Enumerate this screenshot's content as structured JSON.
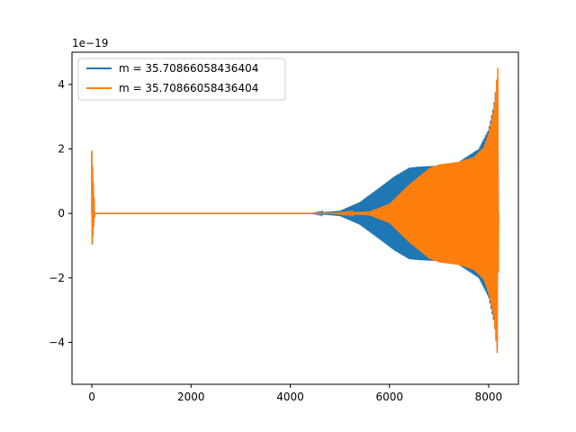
{
  "chart_data": {
    "type": "line",
    "title": "",
    "xlabel": "",
    "ylabel": "",
    "y_offset_label": "1e−19",
    "xlim": [
      -400,
      8600
    ],
    "ylim": [
      -5.3,
      5.0
    ],
    "x_ticks": [
      0,
      2000,
      4000,
      6000,
      8000
    ],
    "x_tick_labels": [
      "0",
      "2000",
      "4000",
      "6000",
      "8000"
    ],
    "y_ticks": [
      -4,
      -2,
      0,
      2,
      4
    ],
    "y_tick_labels": [
      "−4",
      "−2",
      "0",
      "2",
      "4"
    ],
    "grid": false,
    "legend_position": "top-left",
    "series": [
      {
        "name": "m = 35.70866058436404",
        "color": "#1f77b4",
        "x_range": [
          0,
          8200
        ],
        "start_burst": {
          "x_end": 60,
          "peak": 1.9,
          "trough": -1.1
        },
        "envelope": [
          {
            "x": 0,
            "amp": 0.0
          },
          {
            "x": 4400,
            "amp": 0.0
          },
          {
            "x": 5000,
            "amp": 0.08
          },
          {
            "x": 5400,
            "amp": 0.35
          },
          {
            "x": 5800,
            "amp": 0.8
          },
          {
            "x": 6100,
            "amp": 1.15
          },
          {
            "x": 6400,
            "amp": 1.42
          },
          {
            "x": 6600,
            "amp": 1.45
          },
          {
            "x": 7000,
            "amp": 1.48
          },
          {
            "x": 7400,
            "amp": 1.6
          },
          {
            "x": 7800,
            "amp": 2.0
          },
          {
            "x": 8000,
            "amp": 2.6
          },
          {
            "x": 8100,
            "amp": 3.3
          },
          {
            "x": 8150,
            "amp": 3.9
          },
          {
            "x": 8180,
            "amp": 4.3
          },
          {
            "x": 8200,
            "amp": 0.0
          }
        ]
      },
      {
        "name": "m = 35.70866058436404",
        "color": "#ff7f0e",
        "x_range": [
          0,
          8200
        ],
        "start_burst": {
          "x_end": 60,
          "peak": 1.95,
          "trough": -1.08
        },
        "envelope": [
          {
            "x": 0,
            "amp": 0.0
          },
          {
            "x": 4800,
            "amp": 0.0
          },
          {
            "x": 5600,
            "amp": 0.06
          },
          {
            "x": 6000,
            "amp": 0.3
          },
          {
            "x": 6400,
            "amp": 0.9
          },
          {
            "x": 6800,
            "amp": 1.4
          },
          {
            "x": 7000,
            "amp": 1.52
          },
          {
            "x": 7400,
            "amp": 1.6
          },
          {
            "x": 7700,
            "amp": 1.75
          },
          {
            "x": 7900,
            "amp": 2.05
          },
          {
            "x": 8000,
            "amp": 2.5
          },
          {
            "x": 8100,
            "amp": 3.2
          },
          {
            "x": 8150,
            "amp": 4.0
          },
          {
            "x": 8190,
            "amp": 4.6
          },
          {
            "x": 8200,
            "amp": 0.0
          }
        ]
      }
    ]
  }
}
